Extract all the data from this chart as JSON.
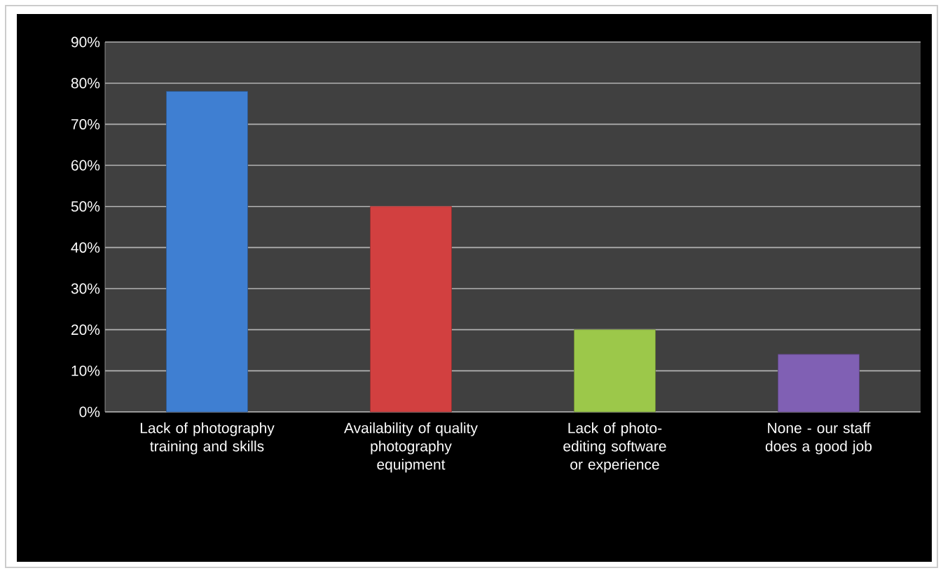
{
  "chart_data": {
    "type": "bar",
    "categories": [
      "Lack of photography training and skills",
      "Availability of quality photography equipment",
      "Lack of photo-editing software or experience",
      "None - our staff does a good job"
    ],
    "values": [
      78,
      50,
      20,
      14
    ],
    "colors": [
      "#3f7fd2",
      "#d24040",
      "#9cc84a",
      "#8060b4"
    ],
    "ylim": [
      0,
      90
    ],
    "yticks": [
      {
        "value": 0,
        "label": "0%"
      },
      {
        "value": 10,
        "label": "10%"
      },
      {
        "value": 20,
        "label": "20%"
      },
      {
        "value": 30,
        "label": "30%"
      },
      {
        "value": 40,
        "label": "40%"
      },
      {
        "value": 50,
        "label": "50%"
      },
      {
        "value": 60,
        "label": "60%"
      },
      {
        "value": 70,
        "label": "70%"
      },
      {
        "value": 80,
        "label": "80%"
      },
      {
        "value": 90,
        "label": "90%"
      }
    ],
    "grid": "y"
  }
}
